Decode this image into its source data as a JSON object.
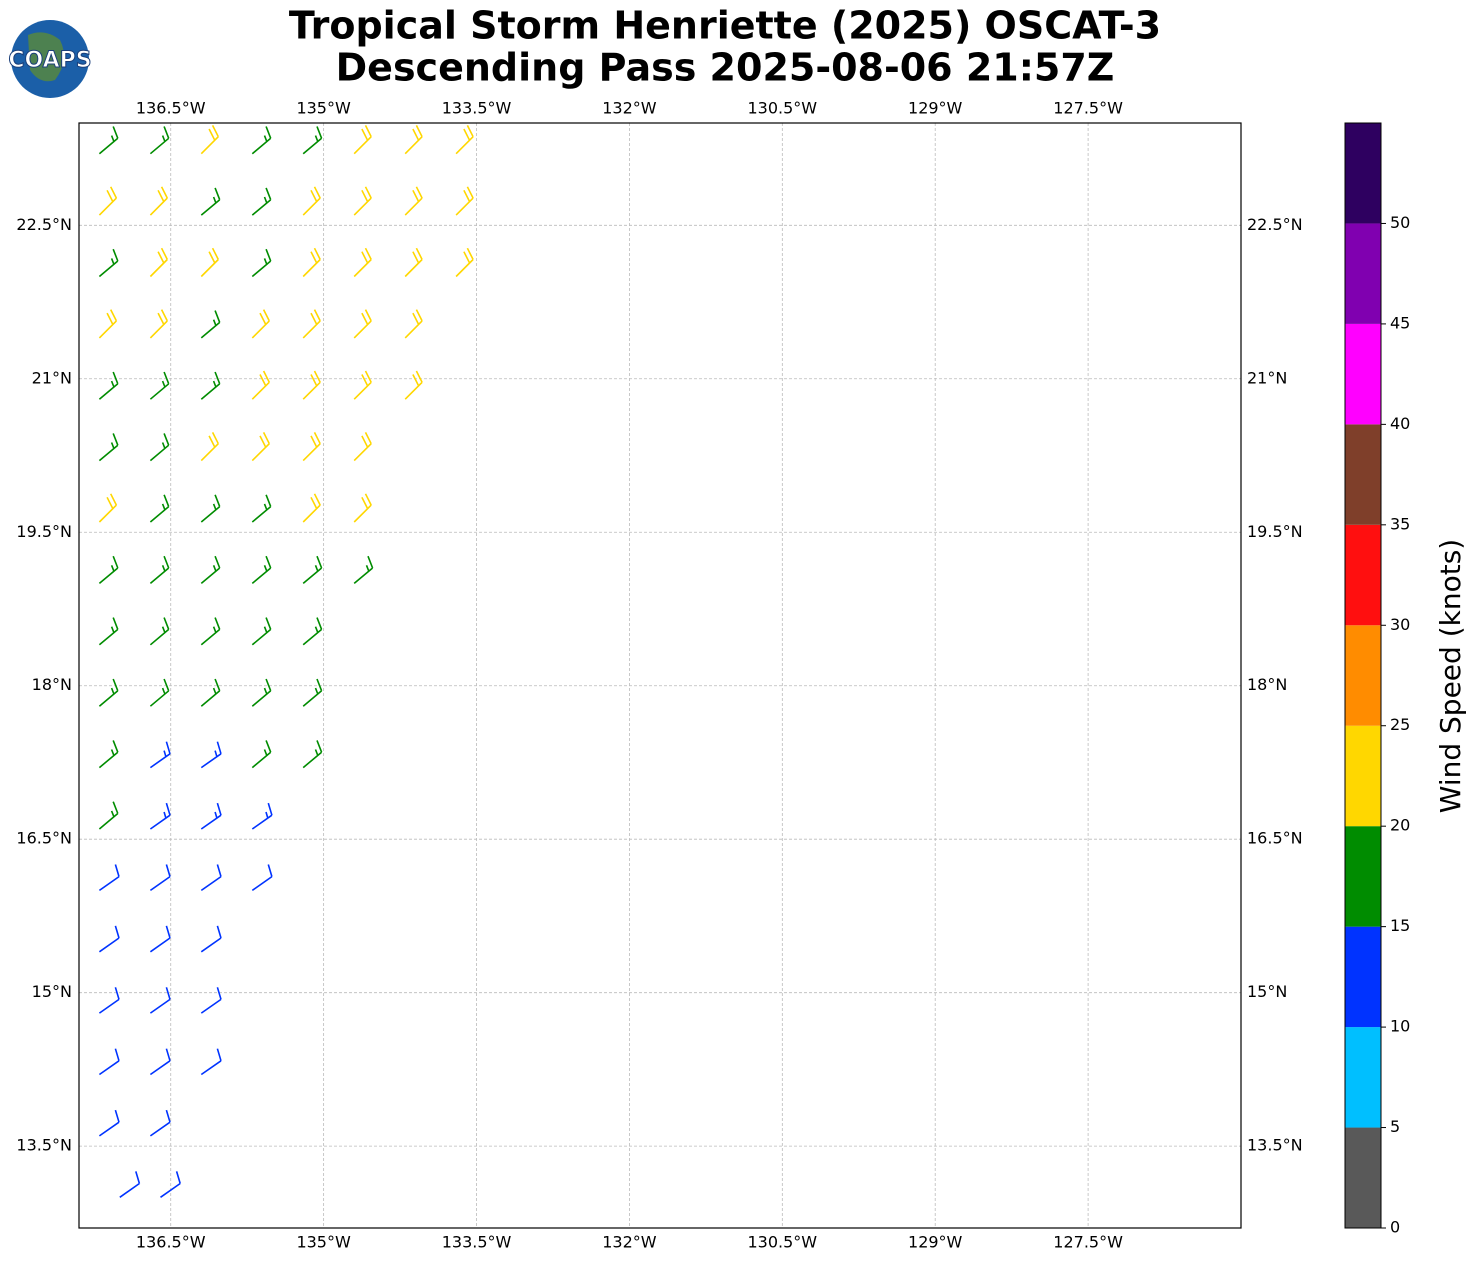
{
  "chart_data": {
    "type": "wind-barb",
    "title": "Tropical Storm Henriette (2025) OSCAT-3",
    "subtitle": "Descending Pass 2025-08-06 21:57Z",
    "logo_text": "COAPS",
    "xlim": [
      -137.4,
      -126.0
    ],
    "ylim": [
      12.7,
      23.5
    ],
    "xticks": [
      {
        "value": -136.5,
        "label": "136.5°W"
      },
      {
        "value": -135,
        "label": "135°W"
      },
      {
        "value": -133.5,
        "label": "133.5°W"
      },
      {
        "value": -132,
        "label": "132°W"
      },
      {
        "value": -130.5,
        "label": "130.5°W"
      },
      {
        "value": -129,
        "label": "129°W"
      },
      {
        "value": -127.5,
        "label": "127.5°W"
      }
    ],
    "yticks": [
      {
        "value": 13.5,
        "label": "13.5°N"
      },
      {
        "value": 15,
        "label": "15°N"
      },
      {
        "value": 16.5,
        "label": "16.5°N"
      },
      {
        "value": 18,
        "label": "18°N"
      },
      {
        "value": 19.5,
        "label": "19.5°N"
      },
      {
        "value": 21,
        "label": "21°N"
      },
      {
        "value": 22.5,
        "label": "22.5°N"
      }
    ],
    "grid": true,
    "colorbar": {
      "label": "Wind Speed (knots)",
      "lim": [
        0,
        55
      ],
      "boundaries": [
        0,
        5,
        10,
        15,
        20,
        25,
        30,
        35,
        40,
        45,
        50,
        55
      ],
      "colors": [
        "#595959",
        "#00bfff",
        "#0033ff",
        "#008c00",
        "#ffd700",
        "#ff8c00",
        "#ff0f0f",
        "#7f3f2a",
        "#ff00ff",
        "#8000b0",
        "#2e0060"
      ],
      "ticks": [
        0,
        5,
        10,
        15,
        20,
        25,
        30,
        35,
        40,
        45,
        50
      ]
    },
    "barbs": [
      [
        -137.2,
        23.2,
        17,
        50
      ],
      [
        -136.7,
        23.2,
        17,
        50
      ],
      [
        -136.2,
        23.2,
        22,
        45
      ],
      [
        -135.7,
        23.2,
        17,
        50
      ],
      [
        -135.2,
        23.2,
        17,
        50
      ],
      [
        -134.7,
        23.2,
        22,
        45
      ],
      [
        -134.2,
        23.2,
        22,
        45
      ],
      [
        -133.7,
        23.2,
        22,
        45
      ],
      [
        -137.2,
        22.6,
        22,
        45
      ],
      [
        -136.7,
        22.6,
        22,
        45
      ],
      [
        -136.2,
        22.6,
        17,
        50
      ],
      [
        -135.7,
        22.6,
        17,
        50
      ],
      [
        -135.2,
        22.6,
        22,
        45
      ],
      [
        -134.7,
        22.6,
        22,
        45
      ],
      [
        -134.2,
        22.6,
        22,
        45
      ],
      [
        -133.7,
        22.6,
        22,
        45
      ],
      [
        -137.2,
        22.0,
        17,
        50
      ],
      [
        -136.7,
        22.0,
        22,
        45
      ],
      [
        -136.2,
        22.0,
        22,
        45
      ],
      [
        -135.7,
        22.0,
        17,
        50
      ],
      [
        -135.2,
        22.0,
        22,
        45
      ],
      [
        -134.7,
        22.0,
        22,
        45
      ],
      [
        -134.2,
        22.0,
        22,
        45
      ],
      [
        -133.7,
        22.0,
        22,
        45
      ],
      [
        -137.2,
        21.4,
        22,
        45
      ],
      [
        -136.7,
        21.4,
        22,
        45
      ],
      [
        -136.2,
        21.4,
        17,
        50
      ],
      [
        -135.7,
        21.4,
        22,
        45
      ],
      [
        -135.2,
        21.4,
        22,
        45
      ],
      [
        -134.7,
        21.4,
        22,
        45
      ],
      [
        -134.2,
        21.4,
        22,
        45
      ],
      [
        -137.2,
        20.8,
        17,
        50
      ],
      [
        -136.7,
        20.8,
        17,
        50
      ],
      [
        -136.2,
        20.8,
        17,
        50
      ],
      [
        -135.7,
        20.8,
        22,
        45
      ],
      [
        -135.2,
        20.8,
        22,
        45
      ],
      [
        -134.7,
        20.8,
        22,
        45
      ],
      [
        -134.2,
        20.8,
        22,
        45
      ],
      [
        -137.2,
        20.2,
        17,
        50
      ],
      [
        -136.7,
        20.2,
        17,
        50
      ],
      [
        -136.2,
        20.2,
        22,
        45
      ],
      [
        -135.7,
        20.2,
        22,
        45
      ],
      [
        -135.2,
        20.2,
        22,
        45
      ],
      [
        -134.7,
        20.2,
        22,
        45
      ],
      [
        -137.2,
        19.6,
        22,
        45
      ],
      [
        -136.7,
        19.6,
        17,
        50
      ],
      [
        -136.2,
        19.6,
        17,
        50
      ],
      [
        -135.7,
        19.6,
        17,
        50
      ],
      [
        -135.2,
        19.6,
        22,
        45
      ],
      [
        -134.7,
        19.6,
        22,
        45
      ],
      [
        -137.2,
        19.0,
        17,
        50
      ],
      [
        -136.7,
        19.0,
        17,
        50
      ],
      [
        -136.2,
        19.0,
        17,
        50
      ],
      [
        -135.7,
        19.0,
        17,
        50
      ],
      [
        -135.2,
        19.0,
        17,
        50
      ],
      [
        -134.7,
        19.0,
        17,
        50
      ],
      [
        -137.2,
        18.4,
        17,
        50
      ],
      [
        -136.7,
        18.4,
        17,
        50
      ],
      [
        -136.2,
        18.4,
        17,
        50
      ],
      [
        -135.7,
        18.4,
        17,
        50
      ],
      [
        -135.2,
        18.4,
        17,
        50
      ],
      [
        -137.2,
        17.8,
        17,
        50
      ],
      [
        -136.7,
        17.8,
        17,
        50
      ],
      [
        -136.2,
        17.8,
        17,
        50
      ],
      [
        -135.7,
        17.8,
        17,
        50
      ],
      [
        -135.2,
        17.8,
        17,
        50
      ],
      [
        -137.2,
        17.2,
        17,
        50
      ],
      [
        -136.7,
        17.2,
        13,
        55
      ],
      [
        -136.2,
        17.2,
        13,
        55
      ],
      [
        -135.7,
        17.2,
        17,
        50
      ],
      [
        -135.2,
        17.2,
        17,
        50
      ],
      [
        -137.2,
        16.6,
        17,
        50
      ],
      [
        -136.7,
        16.6,
        13,
        55
      ],
      [
        -136.2,
        16.6,
        13,
        55
      ],
      [
        -135.7,
        16.6,
        13,
        55
      ],
      [
        -137.2,
        16.0,
        12,
        55
      ],
      [
        -136.7,
        16.0,
        12,
        55
      ],
      [
        -136.2,
        16.0,
        12,
        55
      ],
      [
        -135.7,
        16.0,
        12,
        55
      ],
      [
        -137.2,
        15.4,
        12,
        55
      ],
      [
        -136.7,
        15.4,
        12,
        55
      ],
      [
        -136.2,
        15.4,
        12,
        55
      ],
      [
        -137.2,
        14.8,
        12,
        55
      ],
      [
        -136.7,
        14.8,
        12,
        55
      ],
      [
        -136.2,
        14.8,
        12,
        55
      ],
      [
        -137.2,
        14.2,
        12,
        55
      ],
      [
        -136.7,
        14.2,
        12,
        55
      ],
      [
        -136.2,
        14.2,
        12,
        55
      ],
      [
        -137.2,
        13.6,
        12,
        55
      ],
      [
        -136.7,
        13.6,
        12,
        55
      ],
      [
        -137.0,
        13.0,
        12,
        55
      ],
      [
        -136.6,
        13.0,
        12,
        55
      ]
    ]
  }
}
